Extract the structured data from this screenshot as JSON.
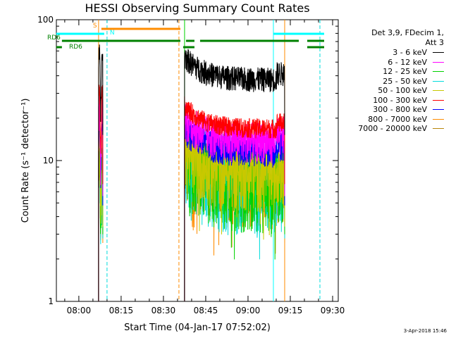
{
  "chart_data": {
    "type": "line",
    "title": "HESSI Observing Summary Count Rates",
    "xlabel": "Start Time (04-Jan-17 07:52:02)",
    "ylabel": "Count Rate (s⁻¹ detector⁻¹)",
    "yscale": "log",
    "ylim": [
      1,
      100
    ],
    "xlim": [
      "07:52:02",
      "09:32:00"
    ],
    "x_ticks": [
      "08:00",
      "08:15",
      "08:30",
      "08:45",
      "09:00",
      "09:15",
      "09:30"
    ],
    "y_ticks": [
      "1",
      "10",
      "100"
    ],
    "legend": {
      "header": [
        "Det 3,9, FDecim 1,",
        "Att 3"
      ],
      "placement": "right"
    },
    "series": [
      {
        "name": "3 - 6 keV",
        "color": "#000000",
        "level_main": 38,
        "level_start": 45,
        "noise": 0.1
      },
      {
        "name": "6 - 12 keV",
        "color": "#ff00ff",
        "level_main": 14,
        "level_start": 18,
        "noise": 0.16
      },
      {
        "name": "12 - 25 keV",
        "color": "#00d200",
        "level_main": 7.5,
        "level_start": 10,
        "noise": 0.3
      },
      {
        "name": "25 - 50 keV",
        "color": "#00dcdc",
        "level_main": 7,
        "level_start": 10,
        "noise": 0.3
      },
      {
        "name": "50 - 100 keV",
        "color": "#c8c800",
        "level_main": 8.5,
        "level_start": 11,
        "noise": 0.25
      },
      {
        "name": "100 - 300 keV",
        "color": "#ff0000",
        "level_main": 17,
        "level_start": 24,
        "noise": 0.08
      },
      {
        "name": "300 - 800 keV",
        "color": "#0000ff",
        "level_main": 12,
        "level_start": 16,
        "noise": 0.13
      },
      {
        "name": "800 - 7000 keV",
        "color": "#ff8c00",
        "level_main": 6.5,
        "level_start": 9,
        "noise": 0.25
      },
      {
        "name": "7000 - 20000 keV",
        "color": "#b8860b",
        "level_main": 7,
        "level_start": 9,
        "noise": 0.2
      }
    ],
    "data_intervals": [
      {
        "start": "08:07:00",
        "end": "08:08:30"
      },
      {
        "start": "08:37:30",
        "end": "09:13:00"
      }
    ],
    "flags": [
      {
        "label": "S",
        "color": "#ff8c00",
        "segments": [
          [
            "08:08",
            "08:36"
          ]
        ]
      },
      {
        "label": "N",
        "color": "#00ffff",
        "segments": [
          [
            "07:52",
            "08:09"
          ],
          [
            "09:09",
            "09:27"
          ]
        ]
      },
      {
        "label": "RD6",
        "color": "#008000",
        "segments": [
          [
            "07:54",
            "08:36"
          ],
          [
            "08:38",
            "08:41"
          ],
          [
            "08:43",
            "09:18"
          ],
          [
            "09:21",
            "09:27"
          ]
        ]
      },
      {
        "label": "RD6",
        "color": "#008000",
        "segments": [
          [
            "07:52",
            "07:54"
          ],
          [
            "08:37",
            "08:41"
          ],
          [
            "09:21",
            "09:27"
          ]
        ]
      }
    ],
    "vlines": [
      {
        "time": "08:07:00",
        "color": "#ff8c00",
        "style": "solid"
      },
      {
        "time": "08:10:00",
        "color": "#00dcdc",
        "style": "dashed"
      },
      {
        "time": "08:35:30",
        "color": "#ff8c00",
        "style": "dashed"
      },
      {
        "time": "08:37:30",
        "color": "#00d200",
        "style": "solid"
      },
      {
        "time": "09:09:00",
        "color": "#00ffff",
        "style": "solid"
      },
      {
        "time": "09:13:00",
        "color": "#ff8c00",
        "style": "solid"
      },
      {
        "time": "09:25:30",
        "color": "#00dcdc",
        "style": "dashed"
      }
    ]
  },
  "footer": "3-Apr-2018 15:46"
}
